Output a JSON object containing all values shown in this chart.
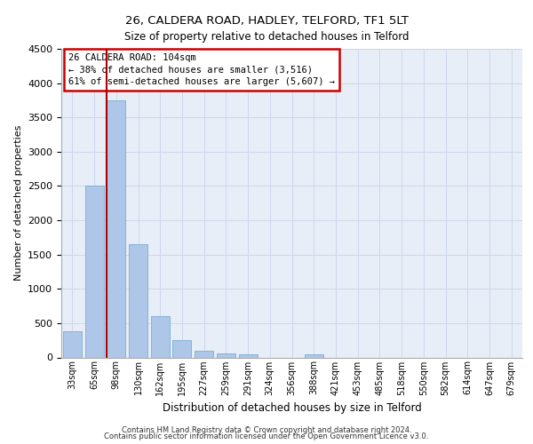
{
  "title_line1": "26, CALDERA ROAD, HADLEY, TELFORD, TF1 5LT",
  "title_line2": "Size of property relative to detached houses in Telford",
  "xlabel": "Distribution of detached houses by size in Telford",
  "ylabel": "Number of detached properties",
  "categories": [
    "33sqm",
    "65sqm",
    "98sqm",
    "130sqm",
    "162sqm",
    "195sqm",
    "227sqm",
    "259sqm",
    "291sqm",
    "324sqm",
    "356sqm",
    "388sqm",
    "421sqm",
    "453sqm",
    "485sqm",
    "518sqm",
    "550sqm",
    "582sqm",
    "614sqm",
    "647sqm",
    "679sqm"
  ],
  "values": [
    380,
    2500,
    3750,
    1650,
    600,
    250,
    100,
    55,
    50,
    0,
    0,
    50,
    0,
    0,
    0,
    0,
    0,
    0,
    0,
    0,
    0
  ],
  "bar_color": "#aec6e8",
  "bar_edge_color": "#7aadd4",
  "vline_index": 2,
  "annotation_line1": "26 CALDERA ROAD: 104sqm",
  "annotation_line2": "← 38% of detached houses are smaller (3,516)",
  "annotation_line3": "61% of semi-detached houses are larger (5,607) →",
  "annotation_box_color": "#ffffff",
  "annotation_box_edge_color": "#cc0000",
  "vline_color": "#aa0000",
  "ylim": [
    0,
    4500
  ],
  "yticks": [
    0,
    500,
    1000,
    1500,
    2000,
    2500,
    3000,
    3500,
    4000,
    4500
  ],
  "grid_color": "#cdd8ea",
  "background_color": "#e8eef8",
  "footer_line1": "Contains HM Land Registry data © Crown copyright and database right 2024.",
  "footer_line2": "Contains public sector information licensed under the Open Government Licence v3.0."
}
